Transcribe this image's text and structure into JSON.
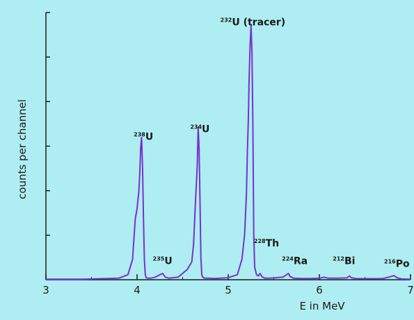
{
  "chart_data": {
    "type": "line",
    "xlabel": "E in MeV",
    "ylabel": "counts per channel",
    "xlim": [
      3,
      7
    ],
    "ylim": [
      0,
      100
    ],
    "x_ticks": [
      "3",
      "4",
      "5",
      "6",
      "7"
    ],
    "y_ticks_count": 6,
    "grid": false,
    "colors": {
      "series": "#7a2fd0",
      "axis": "#1a1a1a",
      "background": "#aeeef2"
    },
    "series": [
      {
        "x": [
          3.0,
          3.4,
          3.6,
          3.8,
          3.9,
          3.95,
          3.98,
          4.0,
          4.02,
          4.03,
          4.04,
          4.05,
          4.06,
          4.07,
          4.08,
          4.09,
          4.1,
          4.12,
          4.15,
          4.2,
          4.25,
          4.28,
          4.31,
          4.35,
          4.45,
          4.55,
          4.6,
          4.62,
          4.64,
          4.66,
          4.67,
          4.68,
          4.69,
          4.7,
          4.71,
          4.72,
          4.74,
          4.78,
          4.85,
          5.0,
          5.1,
          5.15,
          5.18,
          5.2,
          5.21,
          5.22,
          5.23,
          5.24,
          5.25,
          5.26,
          5.27,
          5.28,
          5.29,
          5.31,
          5.33,
          5.35,
          5.37,
          5.4,
          5.45,
          5.5,
          5.6,
          5.64,
          5.66,
          5.68,
          5.72,
          5.8,
          5.9,
          6.0,
          6.05,
          6.1,
          6.2,
          6.3,
          6.33,
          6.35,
          6.4,
          6.5,
          6.6,
          6.7,
          6.78,
          6.82,
          6.85,
          6.9,
          7.0
        ],
        "y": [
          0.2,
          0.2,
          0.4,
          0.6,
          2,
          8,
          24,
          28,
          35,
          42,
          52,
          56,
          44,
          24,
          8,
          2,
          0.8,
          0.6,
          0.6,
          1,
          2,
          2.5,
          1,
          0.6,
          1,
          4,
          7,
          14,
          30,
          45,
          60,
          52,
          32,
          9,
          2,
          1,
          0.6,
          0.6,
          0.5,
          0.8,
          2,
          8,
          18,
          34,
          50,
          62,
          80,
          92,
          100,
          90,
          62,
          18,
          5,
          2,
          1.5,
          2.5,
          1.2,
          0.6,
          0.6,
          0.7,
          1,
          2,
          2.5,
          1.2,
          0.6,
          0.5,
          0.5,
          0.6,
          1,
          0.6,
          0.6,
          0.7,
          1.5,
          0.8,
          0.5,
          0.4,
          0.4,
          0.5,
          1.2,
          1.6,
          0.8,
          0.3,
          0.2
        ]
      }
    ],
    "annotations": [
      {
        "sup": "238",
        "base": "U",
        "x": 4.07,
        "y": 54
      },
      {
        "sup": "235",
        "base": "U",
        "x": 4.28,
        "y": 5
      },
      {
        "sup": "234",
        "base": "U",
        "x": 4.69,
        "y": 57
      },
      {
        "sup": "232",
        "base": "U (tracer)",
        "x": 5.27,
        "y": 99
      },
      {
        "sup": "228",
        "base": "Th",
        "x": 5.42,
        "y": 12
      },
      {
        "sup": "224",
        "base": "Ra",
        "x": 5.73,
        "y": 5
      },
      {
        "sup": "212",
        "base": "Bi",
        "x": 6.27,
        "y": 5
      },
      {
        "sup": "216",
        "base": "Po",
        "x": 6.85,
        "y": 4
      }
    ]
  }
}
